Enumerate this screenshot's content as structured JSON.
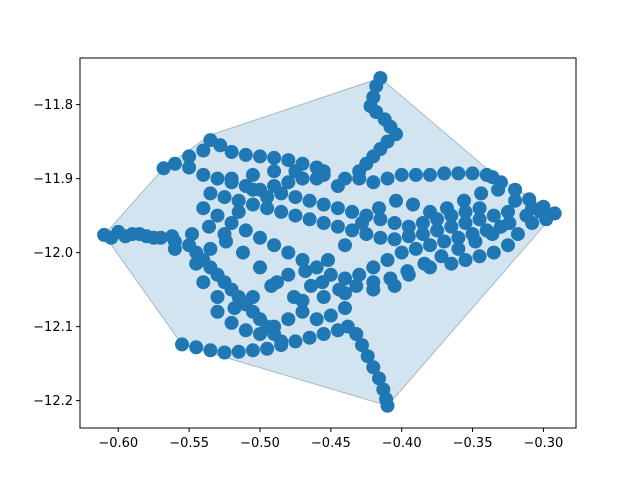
{
  "chart_data": {
    "type": "scatter",
    "title": "",
    "xlabel": "",
    "ylabel": "",
    "xlim": [
      -0.627,
      -0.277
    ],
    "ylim": [
      -12.237,
      -11.737
    ],
    "grid": false,
    "x_ticks": [
      "−0.60",
      "−0.55",
      "−0.50",
      "−0.45",
      "−0.40",
      "−0.35",
      "−0.30"
    ],
    "y_ticks": [
      "−11.8",
      "−11.9",
      "−12.0",
      "−12.1",
      "−12.2"
    ],
    "x_tick_values": [
      -0.6,
      -0.55,
      -0.5,
      -0.45,
      -0.4,
      -0.35,
      -0.3
    ],
    "y_tick_values": [
      -11.8,
      -11.9,
      -12.0,
      -12.1,
      -12.2
    ],
    "colors": {
      "points": "#1f77b4",
      "hull_fill": "#1f77b4",
      "hull_edge": "#7f93a8"
    },
    "hull": [
      [
        -0.61,
        -11.976
      ],
      [
        -0.568,
        -11.886
      ],
      [
        -0.535,
        -11.841
      ],
      [
        -0.415,
        -11.764
      ],
      [
        -0.336,
        -11.893
      ],
      [
        -0.292,
        -11.947
      ],
      [
        -0.41,
        -12.207
      ],
      [
        -0.555,
        -12.124
      ]
    ],
    "series": [
      {
        "points": [
          [
            -0.61,
            -11.976
          ],
          [
            -0.6,
            -11.972
          ],
          [
            -0.59,
            -11.975
          ],
          [
            -0.58,
            -11.978
          ],
          [
            -0.57,
            -11.98
          ],
          [
            -0.562,
            -11.978
          ],
          [
            -0.568,
            -11.886
          ],
          [
            -0.56,
            -11.88
          ],
          [
            -0.55,
            -11.87
          ],
          [
            -0.54,
            -11.862
          ],
          [
            -0.535,
            -11.848
          ],
          [
            -0.528,
            -11.855
          ],
          [
            -0.52,
            -11.864
          ],
          [
            -0.51,
            -11.868
          ],
          [
            -0.5,
            -11.87
          ],
          [
            -0.49,
            -11.872
          ],
          [
            -0.48,
            -11.875
          ],
          [
            -0.47,
            -11.88
          ],
          [
            -0.46,
            -11.885
          ],
          [
            -0.455,
            -11.89
          ],
          [
            -0.55,
            -11.885
          ],
          [
            -0.54,
            -11.895
          ],
          [
            -0.53,
            -11.9
          ],
          [
            -0.52,
            -11.905
          ],
          [
            -0.51,
            -11.91
          ],
          [
            -0.5,
            -11.915
          ],
          [
            -0.49,
            -11.91
          ],
          [
            -0.48,
            -11.905
          ],
          [
            -0.47,
            -11.9
          ],
          [
            -0.455,
            -11.895
          ],
          [
            -0.415,
            -11.764
          ],
          [
            -0.418,
            -11.775
          ],
          [
            -0.42,
            -11.79
          ],
          [
            -0.422,
            -11.802
          ],
          [
            -0.418,
            -11.81
          ],
          [
            -0.412,
            -11.82
          ],
          [
            -0.408,
            -11.83
          ],
          [
            -0.404,
            -11.84
          ],
          [
            -0.41,
            -11.85
          ],
          [
            -0.415,
            -11.86
          ],
          [
            -0.42,
            -11.87
          ],
          [
            -0.425,
            -11.88
          ],
          [
            -0.43,
            -11.89
          ],
          [
            -0.44,
            -11.9
          ],
          [
            -0.43,
            -11.9
          ],
          [
            -0.42,
            -11.905
          ],
          [
            -0.41,
            -11.9
          ],
          [
            -0.4,
            -11.895
          ],
          [
            -0.39,
            -11.895
          ],
          [
            -0.38,
            -11.895
          ],
          [
            -0.37,
            -11.893
          ],
          [
            -0.36,
            -11.893
          ],
          [
            -0.35,
            -11.893
          ],
          [
            -0.34,
            -11.895
          ],
          [
            -0.336,
            -11.898
          ],
          [
            -0.33,
            -11.905
          ],
          [
            -0.32,
            -11.915
          ],
          [
            -0.31,
            -11.928
          ],
          [
            -0.3,
            -11.938
          ],
          [
            -0.292,
            -11.947
          ],
          [
            -0.298,
            -11.955
          ],
          [
            -0.308,
            -11.96
          ],
          [
            -0.318,
            -11.975
          ],
          [
            -0.325,
            -11.99
          ],
          [
            -0.335,
            -12.0
          ],
          [
            -0.345,
            -12.005
          ],
          [
            -0.355,
            -12.01
          ],
          [
            -0.365,
            -12.015
          ],
          [
            -0.38,
            -12.02
          ],
          [
            -0.395,
            -12.03
          ],
          [
            -0.405,
            -12.045
          ],
          [
            -0.42,
            -12.05
          ],
          [
            -0.44,
            -12.055
          ],
          [
            -0.455,
            -12.06
          ],
          [
            -0.47,
            -12.065
          ],
          [
            -0.535,
            -11.92
          ],
          [
            -0.525,
            -11.925
          ],
          [
            -0.515,
            -11.93
          ],
          [
            -0.505,
            -11.935
          ],
          [
            -0.495,
            -11.94
          ],
          [
            -0.485,
            -11.945
          ],
          [
            -0.475,
            -11.95
          ],
          [
            -0.465,
            -11.955
          ],
          [
            -0.455,
            -11.96
          ],
          [
            -0.445,
            -11.965
          ],
          [
            -0.435,
            -11.97
          ],
          [
            -0.425,
            -11.975
          ],
          [
            -0.415,
            -11.98
          ],
          [
            -0.405,
            -11.982
          ],
          [
            -0.395,
            -11.978
          ],
          [
            -0.385,
            -11.975
          ],
          [
            -0.375,
            -11.97
          ],
          [
            -0.365,
            -11.965
          ],
          [
            -0.355,
            -11.96
          ],
          [
            -0.345,
            -11.955
          ],
          [
            -0.335,
            -11.95
          ],
          [
            -0.325,
            -11.945
          ],
          [
            -0.54,
            -11.94
          ],
          [
            -0.53,
            -11.95
          ],
          [
            -0.52,
            -11.96
          ],
          [
            -0.51,
            -11.97
          ],
          [
            -0.5,
            -11.98
          ],
          [
            -0.49,
            -11.99
          ],
          [
            -0.48,
            -12.0
          ],
          [
            -0.47,
            -12.01
          ],
          [
            -0.46,
            -12.02
          ],
          [
            -0.45,
            -12.03
          ],
          [
            -0.44,
            -12.035
          ],
          [
            -0.43,
            -12.03
          ],
          [
            -0.42,
            -12.02
          ],
          [
            -0.41,
            -12.01
          ],
          [
            -0.4,
            -12.0
          ],
          [
            -0.39,
            -11.995
          ],
          [
            -0.38,
            -11.99
          ],
          [
            -0.37,
            -11.985
          ],
          [
            -0.36,
            -11.98
          ],
          [
            -0.35,
            -11.975
          ],
          [
            -0.34,
            -11.97
          ],
          [
            -0.33,
            -11.965
          ],
          [
            -0.55,
            -11.99
          ],
          [
            -0.545,
            -12.0
          ],
          [
            -0.54,
            -12.01
          ],
          [
            -0.535,
            -12.02
          ],
          [
            -0.53,
            -12.03
          ],
          [
            -0.525,
            -12.04
          ],
          [
            -0.52,
            -12.05
          ],
          [
            -0.515,
            -12.06
          ],
          [
            -0.51,
            -12.07
          ],
          [
            -0.505,
            -12.08
          ],
          [
            -0.5,
            -12.09
          ],
          [
            -0.495,
            -12.1
          ],
          [
            -0.49,
            -12.11
          ],
          [
            -0.485,
            -12.12
          ],
          [
            -0.555,
            -12.124
          ],
          [
            -0.545,
            -12.128
          ],
          [
            -0.535,
            -12.132
          ],
          [
            -0.525,
            -12.135
          ],
          [
            -0.515,
            -12.134
          ],
          [
            -0.505,
            -12.132
          ],
          [
            -0.495,
            -12.13
          ],
          [
            -0.485,
            -12.125
          ],
          [
            -0.475,
            -12.12
          ],
          [
            -0.465,
            -12.115
          ],
          [
            -0.455,
            -12.11
          ],
          [
            -0.445,
            -12.105
          ],
          [
            -0.438,
            -12.1
          ],
          [
            -0.432,
            -12.11
          ],
          [
            -0.428,
            -12.125
          ],
          [
            -0.424,
            -12.14
          ],
          [
            -0.42,
            -12.155
          ],
          [
            -0.416,
            -12.17
          ],
          [
            -0.413,
            -12.185
          ],
          [
            -0.411,
            -12.198
          ],
          [
            -0.41,
            -12.207
          ],
          [
            -0.56,
            -11.985
          ],
          [
            -0.56,
            -11.995
          ],
          [
            -0.548,
            -11.975
          ],
          [
            -0.536,
            -11.965
          ],
          [
            -0.524,
            -11.985
          ],
          [
            -0.512,
            -12.0
          ],
          [
            -0.5,
            -12.02
          ],
          [
            -0.488,
            -12.04
          ],
          [
            -0.476,
            -12.06
          ],
          [
            -0.464,
            -12.045
          ],
          [
            -0.452,
            -12.01
          ],
          [
            -0.44,
            -11.99
          ],
          [
            -0.428,
            -11.96
          ],
          [
            -0.416,
            -11.94
          ],
          [
            -0.404,
            -11.93
          ],
          [
            -0.392,
            -11.935
          ],
          [
            -0.38,
            -11.945
          ],
          [
            -0.368,
            -11.94
          ],
          [
            -0.356,
            -11.93
          ],
          [
            -0.344,
            -11.92
          ],
          [
            -0.332,
            -11.915
          ],
          [
            -0.32,
            -11.93
          ],
          [
            -0.308,
            -11.94
          ],
          [
            -0.52,
            -11.9
          ],
          [
            -0.505,
            -11.895
          ],
          [
            -0.49,
            -11.89
          ],
          [
            -0.475,
            -11.89
          ],
          [
            -0.46,
            -11.9
          ],
          [
            -0.445,
            -11.91
          ],
          [
            -0.53,
            -12.08
          ],
          [
            -0.52,
            -12.095
          ],
          [
            -0.51,
            -12.105
          ],
          [
            -0.5,
            -12.11
          ],
          [
            -0.49,
            -12.1
          ],
          [
            -0.48,
            -12.09
          ],
          [
            -0.47,
            -12.08
          ],
          [
            -0.46,
            -12.09
          ],
          [
            -0.45,
            -12.085
          ],
          [
            -0.44,
            -12.075
          ],
          [
            -0.575,
            -11.98
          ],
          [
            -0.585,
            -11.975
          ],
          [
            -0.595,
            -11.978
          ],
          [
            -0.605,
            -11.98
          ],
          [
            -0.345,
            -11.94
          ],
          [
            -0.355,
            -11.945
          ],
          [
            -0.365,
            -11.95
          ],
          [
            -0.375,
            -11.955
          ],
          [
            -0.385,
            -11.96
          ],
          [
            -0.395,
            -11.965
          ],
          [
            -0.405,
            -11.96
          ],
          [
            -0.415,
            -11.955
          ],
          [
            -0.425,
            -11.95
          ],
          [
            -0.435,
            -11.945
          ],
          [
            -0.445,
            -11.94
          ],
          [
            -0.455,
            -11.935
          ],
          [
            -0.465,
            -11.93
          ],
          [
            -0.475,
            -11.925
          ],
          [
            -0.485,
            -11.92
          ],
          [
            -0.495,
            -11.925
          ],
          [
            -0.505,
            -11.915
          ],
          [
            -0.515,
            -11.945
          ],
          [
            -0.525,
            -11.975
          ],
          [
            -0.535,
            -11.995
          ],
          [
            -0.545,
            -12.015
          ],
          [
            -0.54,
            -12.04
          ],
          [
            -0.53,
            -12.06
          ],
          [
            -0.518,
            -12.075
          ],
          [
            -0.505,
            -12.06
          ],
          [
            -0.492,
            -12.045
          ],
          [
            -0.48,
            -12.03
          ],
          [
            -0.468,
            -12.025
          ],
          [
            -0.456,
            -12.04
          ],
          [
            -0.444,
            -12.05
          ],
          [
            -0.432,
            -12.045
          ],
          [
            -0.42,
            -12.04
          ],
          [
            -0.408,
            -12.035
          ],
          [
            -0.396,
            -12.025
          ],
          [
            -0.384,
            -12.015
          ],
          [
            -0.372,
            -12.005
          ],
          [
            -0.36,
            -11.995
          ],
          [
            -0.348,
            -11.985
          ],
          [
            -0.336,
            -11.975
          ],
          [
            -0.324,
            -11.96
          ],
          [
            -0.312,
            -11.95
          ],
          [
            -0.302,
            -11.945
          ]
        ]
      }
    ]
  }
}
